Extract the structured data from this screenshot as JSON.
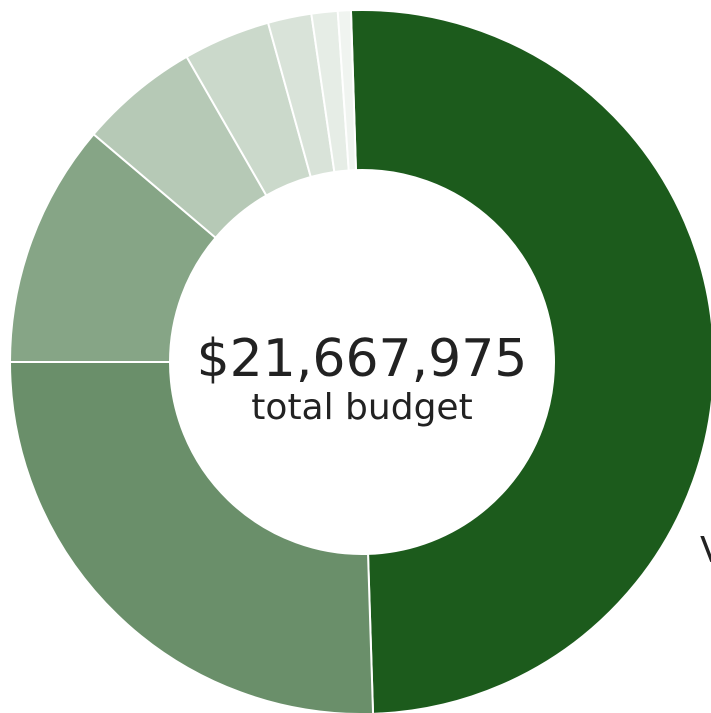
{
  "chart_data": {
    "type": "pie",
    "total_amount": "$21,667,975",
    "total_caption": "total budget",
    "edge_text": "V",
    "slices": [
      {
        "value": 0.5,
        "color": "#1c5b1c"
      },
      {
        "value": 0.255,
        "color": "#6a8f6a"
      },
      {
        "value": 0.112,
        "color": "#86a586"
      },
      {
        "value": 0.055,
        "color": "#b6c9b6"
      },
      {
        "value": 0.04,
        "color": "#cbd9cb"
      },
      {
        "value": 0.02,
        "color": "#d9e3d9"
      },
      {
        "value": 0.012,
        "color": "#e6ede6"
      },
      {
        "value": 0.006,
        "color": "#f0f4f0"
      }
    ]
  }
}
